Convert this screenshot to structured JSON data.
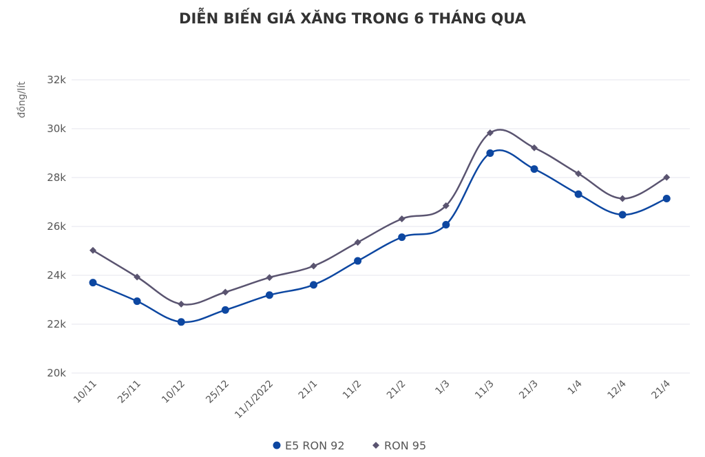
{
  "chart_data": {
    "type": "line",
    "title": "DIỄN BIẾN GIÁ XĂNG TRONG 6 THÁNG QUA",
    "xlabel": "",
    "ylabel": "đồng/lít",
    "categories": [
      "10/11",
      "25/11",
      "10/12",
      "25/12",
      "11/1/2022",
      "21/1",
      "11/2",
      "21/2",
      "1/3",
      "11/3",
      "21/3",
      "1/4",
      "12/4",
      "21/4"
    ],
    "ylim": [
      20000,
      32000
    ],
    "yticks": [
      20000,
      22000,
      24000,
      26000,
      28000,
      30000,
      32000
    ],
    "ytick_labels": [
      "20k",
      "22k",
      "24k",
      "26k",
      "28k",
      "30k",
      "32k"
    ],
    "grid": true,
    "legend_position": "bottom",
    "series": [
      {
        "name": "E5 RON 92",
        "color": "#0d47a1",
        "marker": "circle",
        "values": [
          23700,
          22940,
          22090,
          22580,
          23190,
          23610,
          24590,
          25560,
          26070,
          29000,
          28350,
          27320,
          26480,
          27140
        ]
      },
      {
        "name": "RON 95",
        "color": "#5a5470",
        "marker": "diamond",
        "values": [
          25020,
          23930,
          22820,
          23310,
          23910,
          24380,
          25350,
          26310,
          26850,
          29830,
          29220,
          28160,
          27140,
          28010
        ]
      }
    ]
  }
}
